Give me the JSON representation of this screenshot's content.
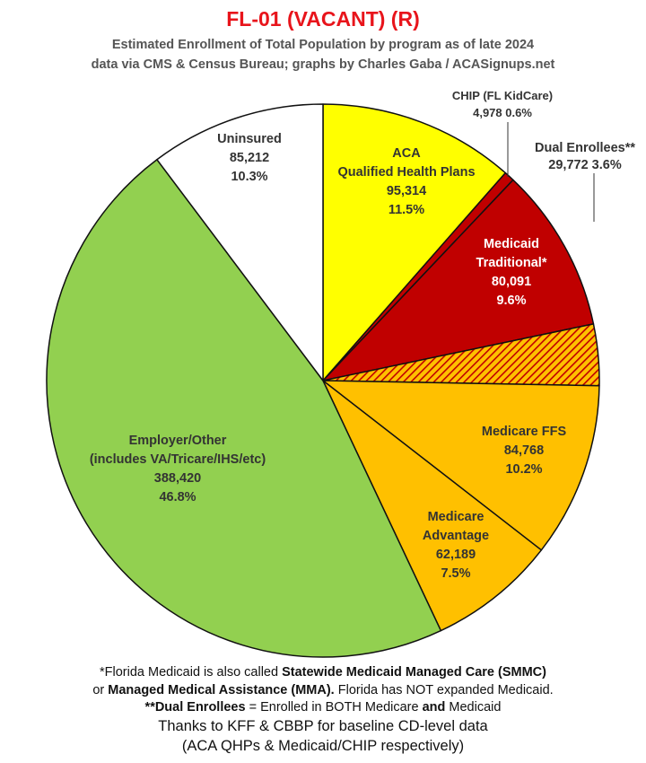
{
  "chart_data": {
    "type": "pie",
    "title": "FL-01 (VACANT) (R)",
    "subtitle_line1": "Estimated Enrollment of Total Population by program as of late 2024",
    "subtitle_line2": "data via CMS & Census Bureau; graphs by Charles Gaba / ACASignups.net",
    "start_angle_deg": 0,
    "direction": "clockwise",
    "slices": [
      {
        "name": "aca",
        "label_lines": [
          "ACA",
          "Qualified Health Plans"
        ],
        "value": 95314,
        "value_text": "95,314",
        "percent": "11.5%",
        "color": "#ffff00",
        "text_color": "#333333",
        "pattern": false
      },
      {
        "name": "chip",
        "label_lines": [
          "CHIP (FL KidCare)"
        ],
        "value": 4978,
        "value_text": "4,978",
        "percent": "0.6%",
        "color": "#c00000",
        "text_color": "#333333",
        "pattern": false
      },
      {
        "name": "medicaid",
        "label_lines": [
          "Medicaid",
          "Traditional*"
        ],
        "value": 80091,
        "value_text": "80,091",
        "percent": "9.6%",
        "color": "#c00000",
        "text_color": "#ffffff",
        "pattern": false
      },
      {
        "name": "dual",
        "label_lines": [
          "Dual Enrollees**"
        ],
        "value": 29772,
        "value_text": "29,772",
        "percent": "3.6%",
        "color": "#ffc000",
        "text_color": "#333333",
        "pattern": true
      },
      {
        "name": "medicare-ffs",
        "label_lines": [
          "Medicare FFS"
        ],
        "value": 84768,
        "value_text": "84,768",
        "percent": "10.2%",
        "color": "#ffc000",
        "text_color": "#333333",
        "pattern": false
      },
      {
        "name": "medicare-advantage",
        "label_lines": [
          "Medicare",
          "Advantage"
        ],
        "value": 62189,
        "value_text": "62,189",
        "percent": "7.5%",
        "color": "#ffc000",
        "text_color": "#333333",
        "pattern": false
      },
      {
        "name": "employer",
        "label_lines": [
          "Employer/Other",
          "(includes VA/Tricare/IHS/etc)"
        ],
        "value": 388420,
        "value_text": "388,420",
        "percent": "46.8%",
        "color": "#92d050",
        "text_color": "#333333",
        "pattern": false
      },
      {
        "name": "uninsured",
        "label_lines": [
          "Uninsured"
        ],
        "value": 85212,
        "value_text": "85,212",
        "percent": "10.3%",
        "color": "#ffffff",
        "text_color": "#333333",
        "pattern": false
      }
    ]
  },
  "footer": {
    "line1_a": "*Florida Medicaid is also called ",
    "line1_b": "Statewide Medicaid Managed Care (SMMC)",
    "line2_a": "or ",
    "line2_b": "Managed Medical Assistance (MMA).",
    "line2_c": " Florida has NOT expanded Medicaid.",
    "line3_a": "**Dual Enrollees",
    "line3_b": " = Enrolled in BOTH Medicare ",
    "line3_c": "and",
    "line3_d": " Medicaid",
    "line4": "Thanks to KFF & CBBP for baseline CD-level data",
    "line5": "(ACA QHPs & Medicaid/CHIP respectively)"
  }
}
